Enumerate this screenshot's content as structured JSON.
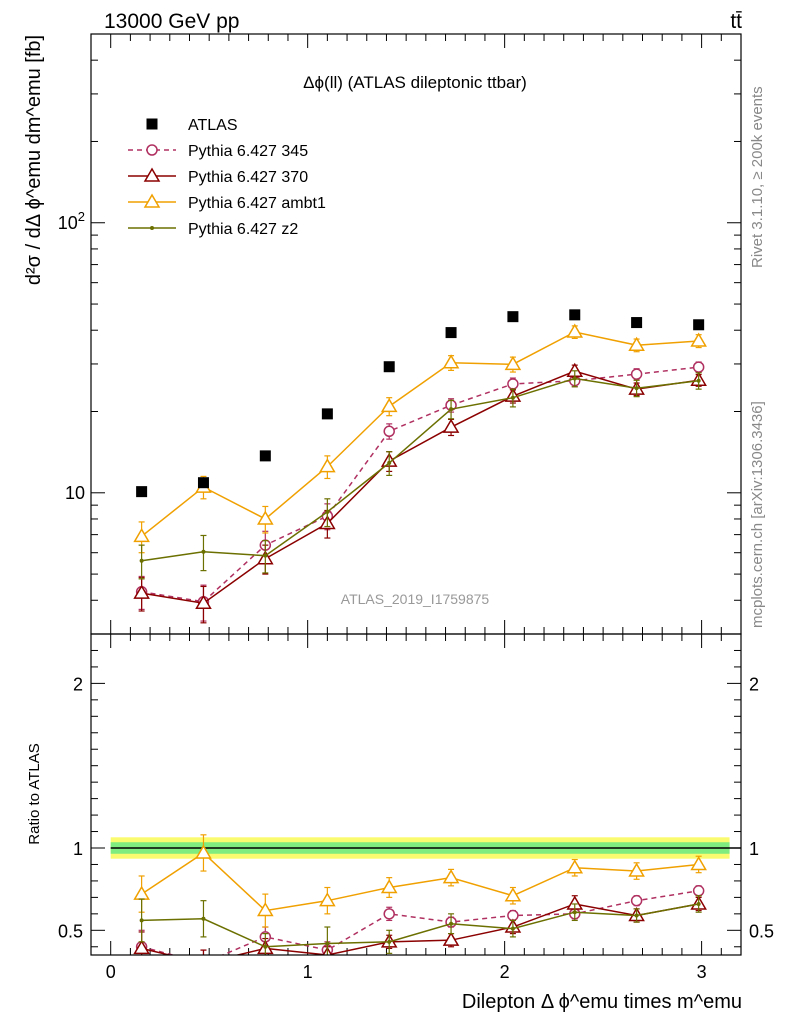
{
  "header": {
    "energy_label": "13000 GeV pp",
    "process_label": "tt̄",
    "rivet_label": "Rivet 3.1.10, ≥ 200k events",
    "mcplots_label": "mcplots.cern.ch [arXiv:1306.3436]"
  },
  "chart_data": [
    {
      "type": "scatter",
      "title": "Δϕ(ll) (ATLAS dileptonic ttbar)",
      "watermark": "ATLAS_2019_I1759875",
      "ylabel": "d²σ / dΔ ϕ^emu dm^emu [fb]",
      "yscale": "log",
      "ylim": [
        3.0,
        500
      ],
      "xlim": [
        -0.1,
        3.2
      ],
      "y_ticks": [
        {
          "value": 10,
          "label": "10"
        },
        {
          "value": 100,
          "label": "10²"
        }
      ],
      "x": [
        0.157,
        0.471,
        0.785,
        1.1,
        1.414,
        1.728,
        2.042,
        2.356,
        2.67,
        2.985
      ],
      "series": [
        {
          "name": "ATLAS",
          "color": "#000000",
          "marker": "square",
          "line": "none",
          "values": [
            10.1,
            10.9,
            13.7,
            19.6,
            29.3,
            39.2,
            44.9,
            45.6,
            42.7,
            41.9
          ],
          "err": [
            0.3,
            0.3,
            0.4,
            0.5,
            0.8,
            1.0,
            1.1,
            1.1,
            1.0,
            1.0
          ]
        },
        {
          "name": "Pythia 6.427 345",
          "color": "#b03060",
          "marker": "circle",
          "line": "dashed",
          "values": [
            4.3,
            3.95,
            6.4,
            8.2,
            16.9,
            21.1,
            25.3,
            26.0,
            27.5,
            29.2
          ],
          "err": [
            0.6,
            0.6,
            0.8,
            0.9,
            1.1,
            1.2,
            1.3,
            1.3,
            1.3,
            1.3
          ]
        },
        {
          "name": "Pythia 6.427 370",
          "color": "#8b0000",
          "marker": "triangle",
          "line": "solid",
          "values": [
            4.25,
            3.9,
            5.7,
            7.7,
            13.1,
            17.5,
            22.8,
            28.2,
            24.2,
            26.1
          ],
          "err": [
            0.6,
            0.6,
            0.7,
            0.9,
            1.1,
            1.2,
            1.3,
            1.5,
            1.3,
            1.3
          ]
        },
        {
          "name": "Pythia 6.427 ambt1",
          "color": "#f0a000",
          "marker": "triangle",
          "line": "solid",
          "values": [
            6.9,
            10.5,
            8.0,
            12.5,
            20.9,
            30.3,
            29.9,
            39.4,
            35.2,
            36.5
          ],
          "err": [
            0.9,
            1.0,
            0.9,
            1.2,
            1.6,
            1.9,
            1.9,
            2.1,
            1.9,
            2.0
          ]
        },
        {
          "name": "Pythia 6.427 z2",
          "color": "#6b7000",
          "marker": "dot",
          "line": "solid",
          "values": [
            5.6,
            6.05,
            5.85,
            8.5,
            12.9,
            20.4,
            22.5,
            26.5,
            24.4,
            26.0
          ],
          "err": [
            0.8,
            0.9,
            0.8,
            1.0,
            1.3,
            1.6,
            1.7,
            1.8,
            1.7,
            1.8
          ]
        }
      ]
    },
    {
      "type": "scatter",
      "ylabel": "Ratio to ATLAS",
      "xlabel": "Dilepton Δ ϕ^emu times m^emu",
      "ylim": [
        0.35,
        2.3
      ],
      "xlim": [
        -0.1,
        3.2
      ],
      "y_ticks": [
        {
          "value": 0.5,
          "label": "0.5"
        },
        {
          "value": 1,
          "label": "1"
        },
        {
          "value": 2,
          "label": "2"
        }
      ],
      "x_ticks": [
        {
          "value": 0,
          "label": "0"
        },
        {
          "value": 1,
          "label": "1"
        },
        {
          "value": 2,
          "label": "2"
        },
        {
          "value": 3,
          "label": "3"
        }
      ],
      "band": {
        "inner_color": "#7fec7f",
        "outer_color": "#fbfb6f",
        "inner_half": 0.035,
        "outer_half": 0.065
      },
      "x": [
        0.157,
        0.471,
        0.785,
        1.1,
        1.414,
        1.728,
        2.042,
        2.356,
        2.67,
        2.985
      ],
      "series": [
        {
          "name": "Pythia 6.427 345",
          "values": [
            0.4,
            0.3,
            0.46,
            0.38,
            0.6,
            0.55,
            0.59,
            0.6,
            0.68,
            0.74
          ],
          "err": [
            0.1,
            0.08,
            0.06,
            0.05,
            0.04,
            0.03,
            0.03,
            0.03,
            0.03,
            0.03
          ]
        },
        {
          "name": "Pythia 6.427 370",
          "values": [
            0.39,
            0.3,
            0.39,
            0.35,
            0.43,
            0.44,
            0.52,
            0.66,
            0.59,
            0.66
          ],
          "err": [
            0.1,
            0.08,
            0.06,
            0.05,
            0.04,
            0.04,
            0.04,
            0.05,
            0.04,
            0.04
          ]
        },
        {
          "name": "Pythia 6.427 ambt1",
          "values": [
            0.72,
            0.97,
            0.62,
            0.68,
            0.76,
            0.82,
            0.71,
            0.88,
            0.86,
            0.9
          ],
          "err": [
            0.11,
            0.11,
            0.1,
            0.08,
            0.06,
            0.05,
            0.05,
            0.05,
            0.05,
            0.05
          ]
        },
        {
          "name": "Pythia 6.427 z2",
          "values": [
            0.56,
            0.57,
            0.4,
            0.42,
            0.43,
            0.54,
            0.51,
            0.61,
            0.59,
            0.66
          ],
          "err": [
            0.13,
            0.11,
            0.08,
            0.1,
            0.07,
            0.06,
            0.05,
            0.05,
            0.04,
            0.05
          ]
        }
      ]
    }
  ]
}
